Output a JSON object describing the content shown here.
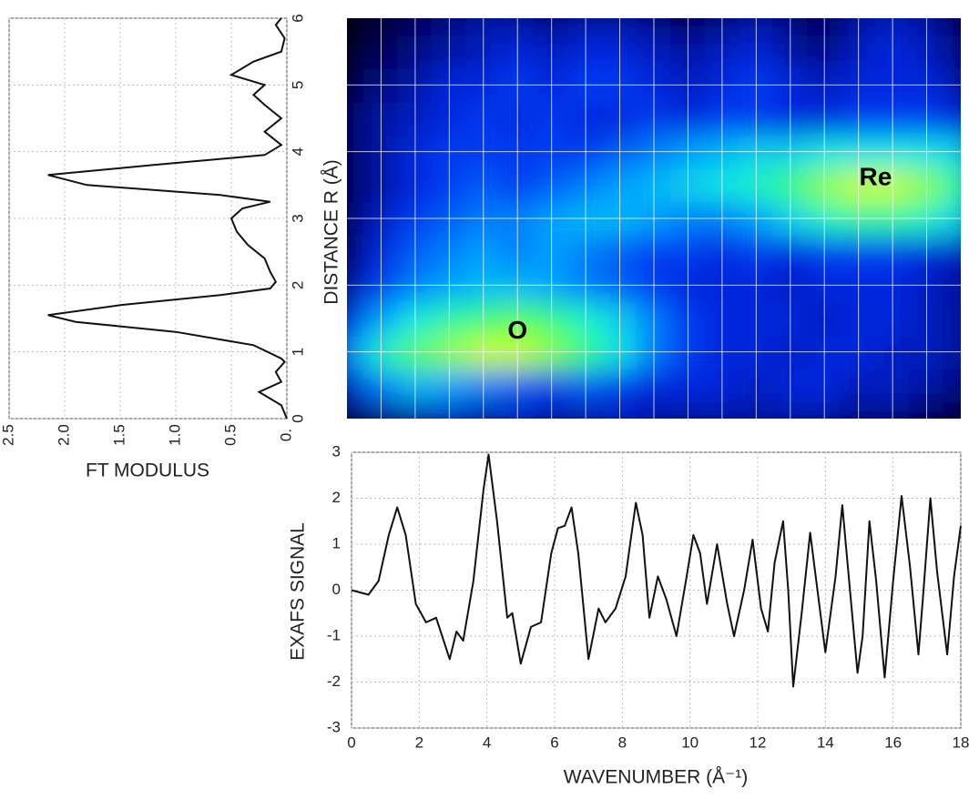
{
  "chart_data": [
    {
      "type": "line",
      "orientation": "vertical",
      "x": [
        0,
        0.2,
        0.4,
        0.55,
        0.7,
        0.85,
        0.9,
        1.1,
        1.3,
        1.45,
        1.55,
        1.7,
        1.85,
        1.95,
        2.05,
        2.2,
        2.4,
        2.6,
        2.8,
        3.0,
        3.15,
        3.25,
        3.35,
        3.5,
        3.65,
        3.8,
        3.95,
        4.1,
        4.3,
        4.5,
        4.7,
        4.85,
        5.0,
        5.15,
        5.35,
        5.5,
        5.7,
        5.9,
        6.0
      ],
      "values": [
        0,
        0.05,
        0.25,
        0.05,
        0.1,
        0.02,
        0.05,
        0.3,
        1.0,
        1.9,
        2.15,
        1.5,
        0.6,
        0.15,
        0.1,
        0.15,
        0.2,
        0.35,
        0.45,
        0.5,
        0.4,
        0.15,
        0.6,
        1.8,
        2.15,
        1.2,
        0.2,
        0.05,
        0.2,
        0.05,
        0.2,
        0.3,
        0.2,
        0.5,
        0.3,
        0.05,
        0.02,
        0.1,
        0.05
      ],
      "xlim": [
        0,
        6
      ],
      "xticks": [
        0,
        1,
        2,
        3,
        4,
        5,
        6
      ],
      "ylim": [
        2.5,
        0
      ],
      "yticks": [
        {
          "value": 0,
          "label": "0."
        },
        0.5,
        {
          "value": 1,
          "label": "1.0"
        },
        1.5,
        {
          "value": 2,
          "label": "2.0"
        },
        2.5
      ],
      "ylabel": "FT MODULUS",
      "color": "#111111",
      "grid": true
    },
    {
      "type": "heatmap",
      "x": [
        0,
        1,
        2,
        3,
        4,
        5,
        6,
        7,
        8,
        9,
        10,
        11,
        12,
        13,
        14,
        15,
        16,
        17,
        18
      ],
      "y": [
        0,
        0.5,
        1,
        1.5,
        2,
        2.5,
        3,
        3.5,
        4,
        4.5,
        5,
        5.5,
        6
      ],
      "z": [
        [
          0.05,
          0.15,
          0.2,
          0.25,
          0.2,
          0.25,
          0.2,
          0.2,
          0.25,
          0.2,
          0.2,
          0.2,
          0.2,
          0.2,
          0.2,
          0.15,
          0.15,
          0.1,
          0.05
        ],
        [
          0.25,
          0.45,
          0.55,
          0.5,
          0.45,
          0.4,
          0.35,
          0.4,
          0.35,
          0.3,
          0.3,
          0.3,
          0.25,
          0.3,
          0.3,
          0.25,
          0.25,
          0.2,
          0.15
        ],
        [
          0.45,
          0.7,
          0.85,
          0.9,
          0.95,
          0.95,
          0.9,
          0.8,
          0.65,
          0.45,
          0.35,
          0.3,
          0.3,
          0.25,
          0.3,
          0.3,
          0.25,
          0.25,
          0.2
        ],
        [
          0.3,
          0.5,
          0.65,
          0.75,
          0.8,
          0.85,
          0.8,
          0.7,
          0.6,
          0.45,
          0.35,
          0.3,
          0.3,
          0.3,
          0.25,
          0.3,
          0.3,
          0.25,
          0.2
        ],
        [
          0.15,
          0.35,
          0.45,
          0.5,
          0.55,
          0.55,
          0.5,
          0.45,
          0.4,
          0.35,
          0.3,
          0.3,
          0.3,
          0.25,
          0.3,
          0.3,
          0.3,
          0.25,
          0.2
        ],
        [
          0.1,
          0.3,
          0.4,
          0.45,
          0.5,
          0.45,
          0.5,
          0.45,
          0.4,
          0.35,
          0.35,
          0.3,
          0.35,
          0.3,
          0.35,
          0.35,
          0.35,
          0.3,
          0.25
        ],
        [
          0.1,
          0.25,
          0.35,
          0.4,
          0.45,
          0.45,
          0.5,
          0.55,
          0.55,
          0.5,
          0.45,
          0.45,
          0.5,
          0.6,
          0.7,
          0.75,
          0.75,
          0.7,
          0.6
        ],
        [
          0.1,
          0.2,
          0.3,
          0.35,
          0.4,
          0.35,
          0.4,
          0.45,
          0.5,
          0.55,
          0.6,
          0.65,
          0.7,
          0.8,
          0.9,
          0.95,
          0.95,
          0.9,
          0.75
        ],
        [
          0.1,
          0.2,
          0.3,
          0.35,
          0.35,
          0.35,
          0.35,
          0.35,
          0.4,
          0.45,
          0.5,
          0.55,
          0.6,
          0.6,
          0.65,
          0.65,
          0.65,
          0.65,
          0.6
        ],
        [
          0.1,
          0.2,
          0.25,
          0.3,
          0.35,
          0.3,
          0.35,
          0.3,
          0.3,
          0.35,
          0.3,
          0.35,
          0.35,
          0.3,
          0.3,
          0.35,
          0.35,
          0.35,
          0.3
        ],
        [
          0.05,
          0.15,
          0.2,
          0.3,
          0.3,
          0.35,
          0.3,
          0.35,
          0.35,
          0.3,
          0.25,
          0.3,
          0.35,
          0.3,
          0.25,
          0.3,
          0.3,
          0.3,
          0.2
        ],
        [
          0,
          0.1,
          0.15,
          0.2,
          0.25,
          0.3,
          0.25,
          0.3,
          0.3,
          0.25,
          0.2,
          0.25,
          0.3,
          0.2,
          0.15,
          0.25,
          0.3,
          0.25,
          0.15
        ],
        [
          0,
          0.05,
          0.1,
          0.15,
          0.2,
          0.2,
          0.15,
          0.2,
          0.2,
          0.15,
          0.1,
          0.15,
          0.2,
          0.15,
          0.1,
          0.2,
          0.25,
          0.2,
          0.1
        ]
      ],
      "xlim": [
        0,
        18
      ],
      "ylim": [
        0,
        6
      ],
      "xticks": [
        1,
        2,
        3,
        4,
        5,
        6,
        7,
        8,
        9,
        10,
        11,
        12,
        13,
        14,
        15,
        16,
        17
      ],
      "yticks": [
        1,
        2,
        3,
        4,
        5
      ],
      "grid": true,
      "ylabel": "DISTANCE R (Å)",
      "colorscale": [
        "#000008",
        "#000a90",
        "#0030f0",
        "#00a0ff",
        "#10f0e0",
        "#40ff60",
        "#ffff00"
      ],
      "annotations": [
        {
          "text": "O",
          "x": 5,
          "y": 1.3
        },
        {
          "text": "Re",
          "x": 15.5,
          "y": 3.6
        }
      ]
    },
    {
      "type": "line",
      "x": [
        0,
        0.5,
        0.8,
        1.1,
        1.35,
        1.6,
        1.9,
        2.2,
        2.5,
        2.9,
        3.1,
        3.3,
        3.6,
        3.9,
        4.05,
        4.3,
        4.6,
        4.75,
        5.0,
        5.3,
        5.6,
        5.9,
        6.1,
        6.3,
        6.5,
        6.7,
        7.0,
        7.3,
        7.5,
        7.8,
        8.1,
        8.4,
        8.6,
        8.8,
        9.05,
        9.3,
        9.6,
        9.9,
        10.1,
        10.3,
        10.5,
        10.8,
        11.1,
        11.3,
        11.6,
        11.85,
        12.1,
        12.3,
        12.5,
        12.75,
        12.9,
        13.05,
        13.3,
        13.55,
        13.8,
        14.0,
        14.3,
        14.5,
        14.7,
        14.95,
        15.1,
        15.3,
        15.5,
        15.75,
        16.0,
        16.25,
        16.5,
        16.75,
        16.9,
        17.1,
        17.3,
        17.6,
        17.8,
        18.0
      ],
      "values": [
        0,
        -0.1,
        0.2,
        1.2,
        1.8,
        1.2,
        -0.3,
        -0.7,
        -0.6,
        -1.5,
        -0.9,
        -1.1,
        0.2,
        2.2,
        2.95,
        1.5,
        -0.6,
        -0.5,
        -1.6,
        -0.8,
        -0.7,
        0.8,
        1.35,
        1.4,
        1.8,
        0.8,
        -1.5,
        -0.4,
        -0.7,
        -0.4,
        0.3,
        1.9,
        1.2,
        -0.6,
        0.3,
        -0.2,
        -1.0,
        0.3,
        1.2,
        0.8,
        -0.3,
        1.0,
        -0.3,
        -1.0,
        0,
        1.1,
        -0.4,
        -0.9,
        0.6,
        1.5,
        0,
        -2.1,
        -0.5,
        1.25,
        -0.2,
        -1.35,
        0.3,
        1.85,
        0.2,
        -1.8,
        -1.0,
        1.5,
        0.2,
        -1.9,
        0.2,
        2.05,
        0.5,
        -1.4,
        0,
        2.0,
        0.4,
        -1.4,
        0.3,
        1.4
      ],
      "xlim": [
        0,
        18
      ],
      "xticks": [
        0,
        2,
        4,
        6,
        8,
        10,
        12,
        14,
        16,
        18
      ],
      "ylim": [
        -3,
        3
      ],
      "yticks": [
        -3,
        -2,
        -1,
        0,
        1,
        2,
        3
      ],
      "xlabel": "WAVENUMBER (Å⁻¹)",
      "ylabel": "EXAFS SIGNAL",
      "color": "#111111",
      "grid": true
    }
  ]
}
